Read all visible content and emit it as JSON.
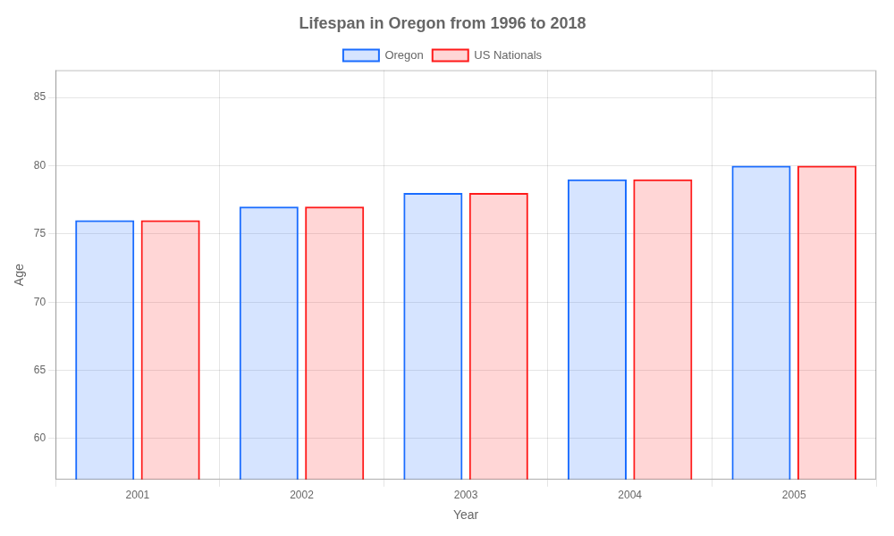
{
  "chart_data": {
    "type": "bar",
    "title": "Lifespan in Oregon from 1996 to 2018",
    "x_label": "Year",
    "y_label": "Age",
    "categories": [
      "2001",
      "2002",
      "2003",
      "2004",
      "2005"
    ],
    "series": [
      {
        "name": "Oregon",
        "color": "#1a6cff",
        "values": [
          76,
          77,
          78,
          79,
          80
        ]
      },
      {
        "name": "US Nationals",
        "color": "#ff1a1a",
        "values": [
          76,
          77,
          78,
          79,
          80
        ]
      }
    ],
    "ylim": [
      57,
      87
    ],
    "yticks": [
      60,
      65,
      70,
      75,
      80,
      85
    ],
    "grid": true,
    "legend": "top"
  }
}
